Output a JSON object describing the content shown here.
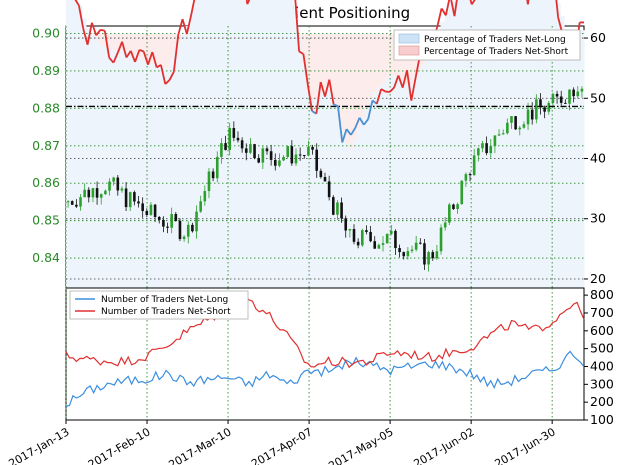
{
  "chart_data": [
    {
      "type": "line",
      "title": "EURGBP Client Positioning",
      "left_axis": {
        "ylim": [
          0.832,
          0.902
        ],
        "ticks": [
          "0.84",
          "0.85",
          "0.86",
          "0.87",
          "0.88",
          "0.89",
          "0.90"
        ],
        "color": "#2a8a2a"
      },
      "right_axis": {
        "ylim": [
          18.5,
          62
        ],
        "ticks": [
          "20",
          "30",
          "40",
          "50",
          "60"
        ]
      },
      "legend": [
        "Percentage of Traders Net-Long",
        "Percentage of Traders Net-Short"
      ],
      "legend_position": "top-right",
      "grid": true,
      "x_dates": [
        "2017-01-13",
        "2017-01-27",
        "2017-02-10",
        "2017-02-24",
        "2017-03-10",
        "2017-03-24",
        "2017-04-07",
        "2017-04-21",
        "2017-05-05",
        "2017-05-19",
        "2017-06-02",
        "2017-06-16",
        "2017-06-30",
        "2017-07-11"
      ],
      "price_close": [
        0.855,
        0.86,
        0.852,
        0.847,
        0.873,
        0.867,
        0.868,
        0.845,
        0.845,
        0.84,
        0.865,
        0.877,
        0.881,
        0.888
      ],
      "pct_net_long_x": [
        "2017-01-13",
        "2017-01-20",
        "2017-01-27",
        "2017-02-03",
        "2017-02-10",
        "2017-02-17",
        "2017-02-24",
        "2017-03-03",
        "2017-03-10",
        "2017-03-17",
        "2017-03-24",
        "2017-03-31",
        "2017-04-07",
        "2017-04-14",
        "2017-04-21",
        "2017-04-28",
        "2017-05-05",
        "2017-05-12",
        "2017-05-19",
        "2017-05-26",
        "2017-06-02",
        "2017-06-09",
        "2017-06-16",
        "2017-06-23",
        "2017-06-30",
        "2017-07-07",
        "2017-07-11"
      ],
      "pct_net_long": [
        73,
        62,
        58,
        58,
        56,
        55,
        62,
        73,
        73,
        67,
        72,
        72,
        49,
        52,
        41,
        50,
        54,
        52,
        58,
        66,
        67,
        71,
        70,
        68,
        69,
        58,
        62
      ],
      "horizontal_line_at": 0.8805
    },
    {
      "type": "line",
      "legend": [
        "Number of Traders Net-Long",
        "Number of Traders Net-Short"
      ],
      "legend_position": "top-left",
      "ylim": [
        100,
        840
      ],
      "ticks": [
        "100",
        "200",
        "300",
        "400",
        "500",
        "600",
        "700",
        "800"
      ],
      "x_ticks": [
        "2017-Jan-13",
        "2017-Feb-10",
        "2017-Mar-10",
        "2017-Apr-07",
        "2017-May-05",
        "2017-Jun-02",
        "2017-Jun-30"
      ],
      "grid": true,
      "series": [
        {
          "name": "Number of Traders Net-Long",
          "color": "#3b8ee0",
          "values": [
            190,
            260,
            300,
            320,
            330,
            360,
            310,
            330,
            340,
            300,
            360,
            300,
            380,
            370,
            430,
            410,
            380,
            400,
            420,
            400,
            360,
            300,
            320,
            360,
            380,
            480,
            420
          ]
        },
        {
          "name": "Number of Traders Net-Short",
          "color": "#e03030",
          "values": [
            460,
            440,
            430,
            430,
            460,
            520,
            600,
            660,
            730,
            780,
            690,
            560,
            400,
            430,
            420,
            430,
            480,
            470,
            450,
            480,
            510,
            580,
            640,
            600,
            650,
            760,
            690
          ]
        }
      ]
    }
  ]
}
